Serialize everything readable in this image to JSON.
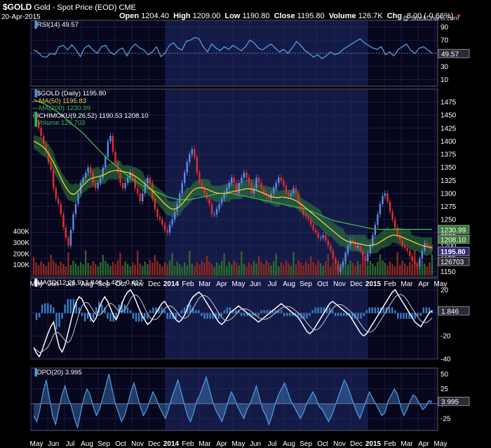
{
  "header": {
    "symbol": "$GOLD",
    "name": "Gold - Spot Price (EOD)",
    "exchange": "CME",
    "date": "20-Apr-2015",
    "open_label": "Open",
    "open": "1204.40",
    "high_label": "High",
    "high": "1209.00",
    "low_label": "Low",
    "low": "1190.80",
    "close_label": "Close",
    "close": "1195.80",
    "volume_label": "Volume",
    "volume": "126.7K",
    "chg_label": "Chg",
    "chg": "-8.00 (-0.66%)",
    "chg_arrow": "▼",
    "watermark": "@ StockCharts.com"
  },
  "legend": {
    "rsi": "RSI(14) 49.57",
    "price": "$GOLD (Daily) 1195.80",
    "ma50": "MA(50) 1195.83",
    "ma200": "MA(200) 1230.99",
    "ichimoku": "ICHIMOKU(9,26,52) 1190.53 1208.10",
    "volume": "Volume 126,703",
    "macd": "MACD(12,26,9) 1.846, 1.429, 0.417",
    "dpo": "DPO(20) 3.995"
  },
  "colors": {
    "background": "#000000",
    "panel_bg": "#06061c",
    "panel_shade": "#141a46",
    "grid": "#2a2a5a",
    "rsi_line": "#4f9fe6",
    "candle_up": "#5a8de8",
    "candle_down": "#e0302a",
    "ma50": "#e7d432",
    "ma200": "#3eb84a",
    "cloud": "#2f7f3f",
    "volume_up": "#2c6a2c",
    "volume_down": "#8a2a20",
    "macd_line": "#ffffff",
    "macd_hist": "#3b7fc4",
    "dpo": "#4f9fe6",
    "chg_arrow": "#ff3030"
  },
  "chart_data": [
    {
      "type": "line",
      "panel": "RSI",
      "name": "RSI(14)",
      "last_value": 49.57,
      "ylim": [
        0,
        100
      ],
      "y_ticks": [
        10,
        30,
        50,
        70,
        90
      ],
      "last_label": "49.57",
      "x_labels": [
        "May",
        "Jun",
        "Jul",
        "Aug",
        "Sep",
        "Oct",
        "Nov",
        "Dec",
        "2014",
        "Feb",
        "Mar",
        "Apr",
        "May",
        "Jun",
        "Jul",
        "Aug",
        "Sep",
        "Oct",
        "Nov",
        "Dec",
        "2015",
        "Feb",
        "Mar",
        "Apr",
        "May"
      ],
      "values": [
        55,
        52,
        45,
        44,
        50,
        48,
        60,
        62,
        55,
        63,
        55,
        45,
        58,
        62,
        55,
        50,
        60,
        62,
        52,
        48,
        55,
        58,
        46,
        58,
        64,
        58,
        55,
        48,
        52,
        60,
        45,
        50,
        62,
        66,
        58,
        55,
        68,
        70,
        74,
        72,
        60,
        52,
        64,
        58,
        54,
        60,
        56,
        62,
        58,
        54,
        60,
        70,
        66,
        58,
        55,
        60,
        64,
        58,
        52,
        56,
        50,
        58,
        68,
        62,
        54,
        50,
        44,
        48,
        42,
        46,
        52,
        48,
        50,
        56,
        60,
        64,
        68,
        72,
        66,
        62,
        58,
        56,
        60,
        48,
        52,
        46,
        56,
        60,
        64,
        54,
        50,
        58,
        60,
        55,
        50
      ]
    },
    {
      "type": "line",
      "panel": "Price",
      "title": "$GOLD (Daily) 1195.80",
      "ylim": [
        1140,
        1500
      ],
      "y_ticks": [
        1150,
        1175,
        1200,
        1225,
        1250,
        1275,
        1300,
        1325,
        1350,
        1375,
        1400,
        1425,
        1450,
        1475
      ],
      "vol_ticks": [
        "100K",
        "200K",
        "300K",
        "400K"
      ],
      "vol_tick_values": [
        100,
        200,
        300,
        400
      ],
      "last_labels": [
        "1230.99",
        "1208.10",
        "1195.80",
        "126703"
      ],
      "x_labels": [
        "May",
        "Jun",
        "Jul",
        "Aug",
        "Sep",
        "Oct",
        "Nov",
        "Dec",
        "2014",
        "Feb",
        "Mar",
        "Apr",
        "May",
        "Jun",
        "Jul",
        "Aug",
        "Sep",
        "Oct",
        "Nov",
        "Dec",
        "2015",
        "Feb",
        "Mar",
        "Apr",
        "May"
      ],
      "close": [
        1450,
        1440,
        1425,
        1410,
        1395,
        1380,
        1360,
        1345,
        1310,
        1290,
        1280,
        1260,
        1235,
        1215,
        1200,
        1230,
        1260,
        1280,
        1300,
        1320,
        1330,
        1340,
        1350,
        1340,
        1320,
        1310,
        1320,
        1330,
        1350,
        1370,
        1400,
        1410,
        1380,
        1360,
        1340,
        1320,
        1310,
        1320,
        1330,
        1340,
        1330,
        1310,
        1300,
        1285,
        1300,
        1320,
        1330,
        1320,
        1290,
        1270,
        1255,
        1250,
        1240,
        1230,
        1225,
        1240,
        1250,
        1265,
        1280,
        1300,
        1320,
        1340,
        1360,
        1375,
        1385,
        1370,
        1340,
        1320,
        1310,
        1300,
        1290,
        1280,
        1260,
        1260,
        1270,
        1280,
        1290,
        1300,
        1310,
        1320,
        1330,
        1320,
        1300,
        1320,
        1330,
        1340,
        1330,
        1320,
        1300,
        1310,
        1330,
        1320,
        1310,
        1300,
        1295,
        1290,
        1300,
        1310,
        1320,
        1330,
        1325,
        1315,
        1300,
        1295,
        1300,
        1310,
        1300,
        1280,
        1270,
        1260,
        1255,
        1250,
        1240,
        1230,
        1225,
        1215,
        1215,
        1220,
        1210,
        1200,
        1190,
        1175,
        1165,
        1150,
        1160,
        1170,
        1185,
        1200,
        1210,
        1205,
        1195,
        1200,
        1190,
        1180,
        1170,
        1185,
        1200,
        1220,
        1240,
        1260,
        1280,
        1295,
        1300,
        1285,
        1265,
        1250,
        1235,
        1220,
        1210,
        1200,
        1195,
        1190,
        1180,
        1170,
        1165,
        1160,
        1175,
        1190,
        1205,
        1200,
        1195,
        1196
      ],
      "ma50": [
        1400,
        1398,
        1395,
        1392,
        1388,
        1383,
        1376,
        1368,
        1360,
        1350,
        1340,
        1330,
        1320,
        1312,
        1305,
        1300,
        1298,
        1300,
        1305,
        1310,
        1316,
        1320,
        1325,
        1328,
        1330,
        1331,
        1332,
        1333,
        1335,
        1337,
        1340,
        1342,
        1343,
        1344,
        1344,
        1343,
        1342,
        1341,
        1340,
        1338,
        1336,
        1333,
        1330,
        1326,
        1322,
        1318,
        1314,
        1310,
        1305,
        1300,
        1295,
        1290,
        1285,
        1280,
        1276,
        1272,
        1270,
        1270,
        1272,
        1275,
        1280,
        1286,
        1292,
        1298,
        1304,
        1308,
        1310,
        1311,
        1311,
        1310,
        1308,
        1306,
        1304,
        1302,
        1301,
        1300,
        1300,
        1300,
        1301,
        1302,
        1303,
        1304,
        1305,
        1306,
        1307,
        1308,
        1309,
        1309,
        1308,
        1307,
        1306,
        1304,
        1302,
        1300,
        1298,
        1296,
        1294,
        1293,
        1292,
        1292,
        1293,
        1293,
        1292,
        1291,
        1290,
        1288,
        1286,
        1283,
        1280,
        1276,
        1272,
        1268,
        1264,
        1260,
        1256,
        1252,
        1248,
        1244,
        1240,
        1236,
        1232,
        1228,
        1224,
        1220,
        1216,
        1213,
        1210,
        1208,
        1207,
        1206,
        1205,
        1204,
        1203,
        1202,
        1201,
        1200,
        1200,
        1201,
        1202,
        1204,
        1207,
        1210,
        1213,
        1216,
        1218,
        1220,
        1220,
        1219,
        1218,
        1216,
        1214,
        1212,
        1210,
        1208,
        1206,
        1204,
        1202,
        1200,
        1199,
        1198,
        1197,
        1196
      ],
      "ma200": [
        1480,
        1478,
        1476,
        1474,
        1472,
        1470,
        1467,
        1464,
        1461,
        1458,
        1455,
        1451,
        1447,
        1443,
        1439,
        1435,
        1431,
        1427,
        1423,
        1419,
        1415,
        1410,
        1405,
        1400,
        1395,
        1390,
        1385,
        1380,
        1375,
        1370,
        1366,
        1362,
        1358,
        1354,
        1350,
        1346,
        1342,
        1338,
        1334,
        1330,
        1327,
        1324,
        1321,
        1318,
        1315,
        1312,
        1310,
        1308,
        1306,
        1304,
        1302,
        1300,
        1298,
        1296,
        1294,
        1292,
        1291,
        1290,
        1289,
        1288,
        1288,
        1288,
        1288,
        1288,
        1289,
        1290,
        1291,
        1292,
        1293,
        1294,
        1295,
        1296,
        1297,
        1298,
        1299,
        1300,
        1300,
        1300,
        1300,
        1300,
        1300,
        1299,
        1298,
        1297,
        1296,
        1295,
        1294,
        1293,
        1292,
        1291,
        1290,
        1289,
        1288,
        1287,
        1286,
        1285,
        1284,
        1283,
        1282,
        1281,
        1280,
        1279,
        1278,
        1277,
        1276,
        1275,
        1274,
        1273,
        1272,
        1271,
        1270,
        1268,
        1266,
        1264,
        1262,
        1260,
        1258,
        1256,
        1254,
        1252,
        1250,
        1248,
        1247,
        1246,
        1245,
        1244,
        1243,
        1242,
        1241,
        1240,
        1239,
        1238,
        1237,
        1236,
        1235,
        1234,
        1233,
        1232,
        1232,
        1232,
        1231,
        1231,
        1231,
        1231,
        1231,
        1231,
        1231,
        1231,
        1231,
        1231,
        1231,
        1231,
        1231,
        1231,
        1231,
        1231,
        1231,
        1231,
        1231,
        1231,
        1231,
        1231
      ]
    },
    {
      "type": "line",
      "panel": "MACD",
      "name": "MACD(12,26,9)",
      "ylim": [
        -40,
        30
      ],
      "y_ticks": [
        -40,
        -20,
        0,
        20
      ],
      "last_label": "1.846",
      "values": [
        -30,
        -35,
        -38,
        -32,
        -25,
        -18,
        -12,
        -8,
        -20,
        -30,
        -34,
        -28,
        -18,
        -8,
        2,
        10,
        14,
        12,
        6,
        2,
        -4,
        -8,
        -4,
        4,
        10,
        14,
        10,
        4,
        -2,
        -6,
        0,
        8,
        14,
        18,
        20,
        16,
        10,
        4,
        -2,
        -6,
        -10,
        -8,
        -4,
        0,
        4,
        8,
        10,
        6,
        2,
        -2,
        -6,
        -8,
        -6,
        -2,
        4,
        10,
        14,
        16,
        18,
        16,
        12,
        8,
        4,
        0,
        -4,
        -8,
        -10,
        -8,
        -4,
        0,
        2,
        4,
        6,
        4,
        2,
        0,
        -2,
        -4,
        -6,
        -8,
        -6,
        -4,
        -2,
        0,
        2,
        4,
        6,
        8,
        6,
        4,
        2,
        0,
        -2,
        -4,
        -8,
        -12,
        -16,
        -18,
        -16,
        -12,
        -8,
        -4,
        0,
        4,
        8,
        10,
        8,
        6,
        4,
        2,
        0,
        -2,
        -6,
        -10,
        -14,
        -18,
        -20,
        -18,
        -14,
        -10,
        -6,
        -2,
        2,
        6,
        10,
        14,
        18,
        20,
        16,
        12,
        8,
        4,
        0,
        -4,
        -8,
        -10,
        -12,
        -8,
        -4,
        0,
        2
      ]
    },
    {
      "type": "line",
      "panel": "DPO",
      "name": "DPO(20)",
      "ylim": [
        -45,
        60
      ],
      "y_ticks": [
        -25,
        0,
        25,
        50
      ],
      "last_label": "3.995",
      "values": [
        -20,
        -30,
        -10,
        20,
        40,
        10,
        -20,
        -35,
        -10,
        15,
        30,
        10,
        -5,
        -25,
        -40,
        -15,
        10,
        25,
        15,
        -5,
        -20,
        -10,
        10,
        30,
        50,
        25,
        0,
        -15,
        -30,
        -20,
        0,
        20,
        35,
        15,
        -5,
        -20,
        -10,
        5,
        20,
        10,
        -5,
        -15,
        -25,
        -10,
        10,
        25,
        40,
        20,
        0,
        -20,
        -30,
        -15,
        5,
        15,
        30,
        45,
        25,
        5,
        -10,
        -20,
        -30,
        -15,
        5,
        20,
        10,
        -5,
        -15,
        -25,
        -10,
        0,
        15,
        30,
        10,
        -10,
        -20,
        -35,
        -20,
        0,
        15,
        25,
        35,
        20,
        5,
        -5,
        -15,
        -25,
        -15,
        0,
        10,
        20,
        10,
        -5,
        -10,
        -20,
        -30,
        -20,
        -5,
        10,
        25,
        40,
        30,
        15,
        0,
        -15,
        -25,
        -10,
        5,
        20,
        10,
        0,
        -10,
        -20,
        -15,
        5,
        15,
        25,
        15,
        -5,
        -20,
        -10,
        5,
        15,
        10,
        0,
        -10,
        -5,
        5,
        4
      ]
    }
  ]
}
